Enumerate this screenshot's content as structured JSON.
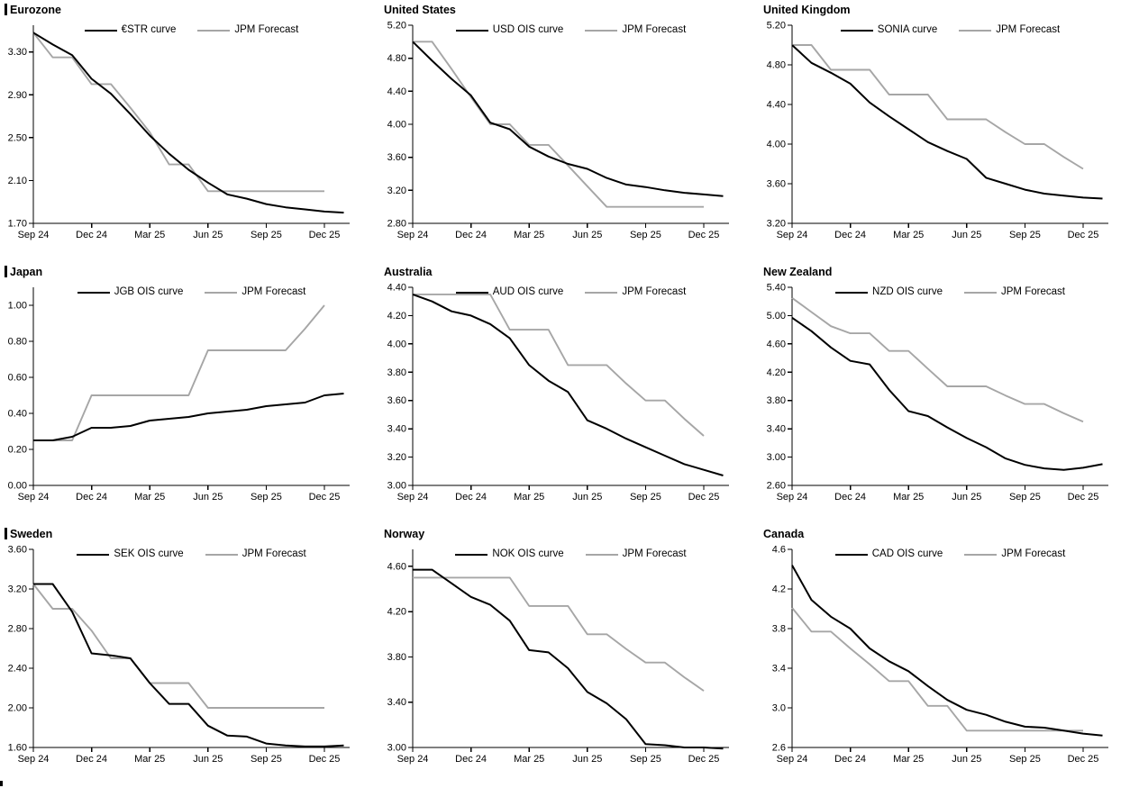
{
  "page": {
    "background": "#ffffff"
  },
  "colors": {
    "curve": "#000000",
    "forecast": "#a6a6a6",
    "axis": "#000000"
  },
  "x_axis": {
    "tick_labels": [
      "Sep 24",
      "Dec 24",
      "Mar 25",
      "Jun 25",
      "Sep 25",
      "Dec 25"
    ],
    "tick_months": [
      0,
      3,
      6,
      9,
      12,
      15
    ],
    "domain_months": 16.3
  },
  "chart_data": [
    {
      "title": "Eurozone",
      "type": "line",
      "section_bar": true,
      "grid": false,
      "legend_position": "top-center",
      "ylim": [
        1.7,
        3.55
      ],
      "yticks": [
        "1.70",
        "2.10",
        "2.50",
        "2.90",
        "3.30"
      ],
      "series": [
        {
          "name": "€STR curve",
          "color": "#000000",
          "values": [
            3.48,
            3.37,
            3.27,
            3.05,
            2.91,
            2.72,
            2.52,
            2.35,
            2.2,
            2.08,
            1.97,
            1.93,
            1.88,
            1.85,
            1.83,
            1.81,
            1.8
          ]
        },
        {
          "name": "JPM Forecast",
          "color": "#a6a6a6",
          "values": [
            3.48,
            3.25,
            3.25,
            3.0,
            3.0,
            2.78,
            2.55,
            2.25,
            2.25,
            2.0,
            2.0,
            2.0,
            2.0,
            2.0,
            2.0,
            2.0
          ]
        }
      ]
    },
    {
      "title": "United States",
      "type": "line",
      "section_bar": false,
      "grid": false,
      "legend_position": "top-center",
      "ylim": [
        2.8,
        5.2
      ],
      "yticks": [
        "2.80",
        "3.20",
        "3.60",
        "4.00",
        "4.40",
        "4.80",
        "5.20"
      ],
      "series": [
        {
          "name": "USD OIS curve",
          "color": "#000000",
          "values": [
            5.0,
            4.77,
            4.55,
            4.35,
            4.02,
            3.94,
            3.73,
            3.61,
            3.52,
            3.46,
            3.35,
            3.27,
            3.24,
            3.2,
            3.17,
            3.15,
            3.13
          ]
        },
        {
          "name": "JPM Forecast",
          "color": "#a6a6a6",
          "values": [
            5.0,
            5.0,
            4.67,
            4.33,
            4.0,
            4.0,
            3.75,
            3.75,
            3.5,
            3.25,
            3.0,
            3.0,
            3.0,
            3.0,
            3.0,
            3.0
          ]
        }
      ]
    },
    {
      "title": "United Kingdom",
      "type": "line",
      "section_bar": false,
      "grid": false,
      "legend_position": "top-center",
      "ylim": [
        3.2,
        5.2
      ],
      "yticks": [
        "3.20",
        "3.60",
        "4.00",
        "4.40",
        "4.80",
        "5.20"
      ],
      "series": [
        {
          "name": "SONIA curve",
          "color": "#000000",
          "values": [
            5.0,
            4.82,
            4.72,
            4.61,
            4.42,
            4.28,
            4.15,
            4.02,
            3.93,
            3.85,
            3.66,
            3.6,
            3.54,
            3.5,
            3.48,
            3.46,
            3.45
          ]
        },
        {
          "name": "JPM Forecast",
          "color": "#a6a6a6",
          "values": [
            5.0,
            5.0,
            4.75,
            4.75,
            4.75,
            4.5,
            4.5,
            4.5,
            4.25,
            4.25,
            4.25,
            4.12,
            4.0,
            4.0,
            3.87,
            3.75
          ]
        }
      ]
    },
    {
      "title": "Japan",
      "type": "line",
      "section_bar": true,
      "grid": false,
      "legend_position": "top-center",
      "ylim": [
        0.0,
        1.1
      ],
      "yticks": [
        "0.00",
        "0.20",
        "0.40",
        "0.60",
        "0.80",
        "1.00"
      ],
      "series": [
        {
          "name": "JGB OIS curve",
          "color": "#000000",
          "values": [
            0.25,
            0.25,
            0.27,
            0.32,
            0.32,
            0.33,
            0.36,
            0.37,
            0.38,
            0.4,
            0.41,
            0.42,
            0.44,
            0.45,
            0.46,
            0.5,
            0.51
          ]
        },
        {
          "name": "JPM Forecast",
          "color": "#a6a6a6",
          "values": [
            0.25,
            0.25,
            0.25,
            0.5,
            0.5,
            0.5,
            0.5,
            0.5,
            0.5,
            0.75,
            0.75,
            0.75,
            0.75,
            0.75,
            0.87,
            1.0
          ]
        }
      ]
    },
    {
      "title": "Australia",
      "type": "line",
      "section_bar": false,
      "grid": false,
      "legend_position": "top-center",
      "ylim": [
        3.0,
        4.4
      ],
      "yticks": [
        "3.00",
        "3.20",
        "3.40",
        "3.60",
        "3.80",
        "4.00",
        "4.20",
        "4.40"
      ],
      "series": [
        {
          "name": "AUD OIS curve",
          "color": "#000000",
          "values": [
            4.35,
            4.3,
            4.23,
            4.2,
            4.14,
            4.04,
            3.85,
            3.74,
            3.66,
            3.46,
            3.4,
            3.33,
            3.27,
            3.21,
            3.15,
            3.11,
            3.07
          ]
        },
        {
          "name": "JPM Forecast",
          "color": "#a6a6a6",
          "values": [
            4.35,
            4.35,
            4.35,
            4.35,
            4.35,
            4.1,
            4.1,
            4.1,
            3.85,
            3.85,
            3.85,
            3.72,
            3.6,
            3.6,
            3.47,
            3.35
          ]
        }
      ]
    },
    {
      "title": "New Zealand",
      "type": "line",
      "section_bar": false,
      "grid": false,
      "legend_position": "top-center",
      "ylim": [
        2.6,
        5.4
      ],
      "yticks": [
        "2.60",
        "3.00",
        "3.40",
        "3.80",
        "4.20",
        "4.60",
        "5.00",
        "5.40"
      ],
      "series": [
        {
          "name": "NZD OIS curve",
          "color": "#000000",
          "values": [
            4.97,
            4.78,
            4.55,
            4.36,
            4.31,
            3.95,
            3.65,
            3.58,
            3.42,
            3.27,
            3.14,
            2.98,
            2.89,
            2.84,
            2.82,
            2.85,
            2.9
          ]
        },
        {
          "name": "JPM Forecast",
          "color": "#a6a6a6",
          "values": [
            5.25,
            5.05,
            4.85,
            4.75,
            4.75,
            4.5,
            4.5,
            4.25,
            4.0,
            4.0,
            4.0,
            3.87,
            3.75,
            3.75,
            3.62,
            3.5
          ]
        }
      ]
    },
    {
      "title": "Sweden",
      "type": "line",
      "section_bar": true,
      "grid": false,
      "legend_position": "top-center",
      "ylim": [
        1.6,
        3.6
      ],
      "yticks": [
        "1.60",
        "2.00",
        "2.40",
        "2.80",
        "3.20",
        "3.60"
      ],
      "series": [
        {
          "name": "SEK OIS curve",
          "color": "#000000",
          "values": [
            3.25,
            3.25,
            2.97,
            2.55,
            2.53,
            2.5,
            2.25,
            2.04,
            2.04,
            1.82,
            1.72,
            1.71,
            1.64,
            1.62,
            1.61,
            1.61,
            1.62
          ]
        },
        {
          "name": "JPM Forecast",
          "color": "#a6a6a6",
          "values": [
            3.25,
            3.0,
            3.0,
            2.78,
            2.5,
            2.5,
            2.25,
            2.25,
            2.25,
            2.0,
            2.0,
            2.0,
            2.0,
            2.0,
            2.0,
            2.0
          ]
        }
      ]
    },
    {
      "title": "Norway",
      "type": "line",
      "section_bar": false,
      "grid": false,
      "legend_position": "top-center",
      "ylim": [
        3.0,
        4.75
      ],
      "yticks": [
        "3.00",
        "3.40",
        "3.80",
        "4.20",
        "4.60"
      ],
      "series": [
        {
          "name": "NOK OIS curve",
          "color": "#000000",
          "values": [
            4.57,
            4.57,
            4.45,
            4.33,
            4.26,
            4.12,
            3.86,
            3.84,
            3.7,
            3.49,
            3.39,
            3.25,
            3.03,
            3.02,
            3.0,
            3.0,
            2.99
          ]
        },
        {
          "name": "JPM Forecast",
          "color": "#a6a6a6",
          "values": [
            4.5,
            4.5,
            4.5,
            4.5,
            4.5,
            4.5,
            4.25,
            4.25,
            4.25,
            4.0,
            4.0,
            3.87,
            3.75,
            3.75,
            3.62,
            3.5
          ]
        }
      ]
    },
    {
      "title": "Canada",
      "type": "line",
      "section_bar": false,
      "grid": false,
      "legend_position": "top-center",
      "ylim": [
        2.6,
        4.6
      ],
      "yticks": [
        "2.6",
        "3.0",
        "3.4",
        "3.8",
        "4.2",
        "4.6"
      ],
      "series": [
        {
          "name": "CAD OIS curve",
          "color": "#000000",
          "values": [
            4.44,
            4.09,
            3.92,
            3.8,
            3.6,
            3.47,
            3.37,
            3.22,
            3.08,
            2.98,
            2.93,
            2.86,
            2.81,
            2.8,
            2.77,
            2.74,
            2.72
          ]
        },
        {
          "name": "JPM Forecast",
          "color": "#a6a6a6",
          "values": [
            4.01,
            3.77,
            3.77,
            3.6,
            3.44,
            3.27,
            3.27,
            3.02,
            3.02,
            2.77,
            2.77,
            2.77,
            2.77,
            2.77,
            2.77,
            2.77
          ]
        }
      ]
    }
  ]
}
